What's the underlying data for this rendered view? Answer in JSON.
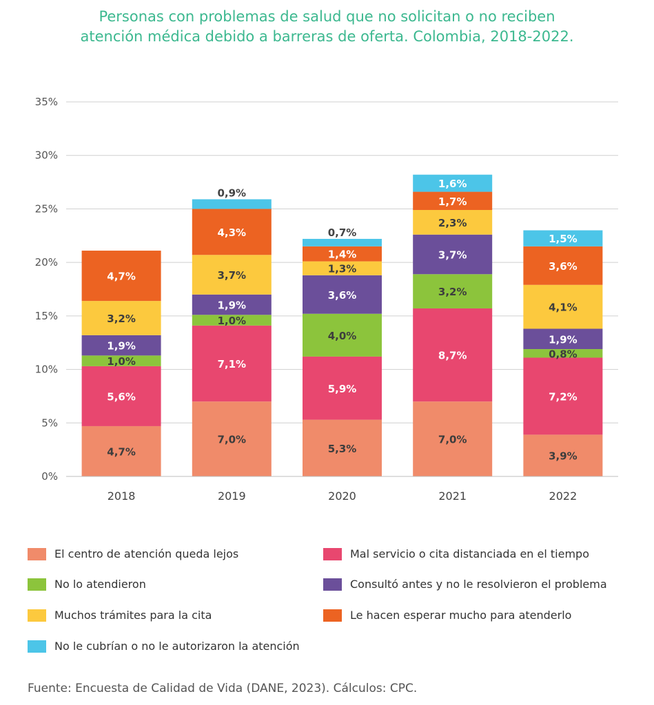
{
  "title_lines": [
    "Personas con problemas de salud que no solicitan o no reciben",
    "atención médica debido a barreras de oferta. Colombia, 2018-2022."
  ],
  "source": "Fuente: Encuesta de Calidad de Vida (DANE, 2023). Cálculos: CPC.",
  "chart_data": {
    "type": "bar",
    "stacked": true,
    "categories": [
      "2018",
      "2019",
      "2020",
      "2021",
      "2022"
    ],
    "ylim": [
      0,
      35
    ],
    "yticks": [
      0,
      5,
      10,
      15,
      20,
      25,
      30,
      35
    ],
    "ytick_labels": [
      "0%",
      "5%",
      "10%",
      "15%",
      "20%",
      "25%",
      "30%",
      "35%"
    ],
    "grid": true,
    "legend_position": "bottom",
    "series": [
      {
        "name": "El centro de atención queda lejos",
        "color": "#f08b6a",
        "values": [
          4.7,
          7.0,
          5.3,
          7.0,
          3.9
        ],
        "labels": [
          "4,7%",
          "7,0%",
          "5,3%",
          "7,0%",
          "3,9%"
        ]
      },
      {
        "name": "Mal servicio o cita distanciada en el tiempo",
        "color": "#e8476f",
        "values": [
          5.6,
          7.1,
          5.9,
          8.7,
          7.2
        ],
        "labels": [
          "5,6%",
          "7,1%",
          "5,9%",
          "8,7%",
          "7,2%"
        ]
      },
      {
        "name": "No lo atendieron",
        "color": "#8cc43c",
        "values": [
          1.0,
          1.0,
          4.0,
          3.2,
          0.8
        ],
        "labels": [
          "1,0%",
          "1,0%",
          "4,0%",
          "3,2%",
          "0,8%"
        ]
      },
      {
        "name": "Consultó antes y no le resolvieron el problema",
        "color": "#6b4f9a",
        "values": [
          1.9,
          1.9,
          3.6,
          3.7,
          1.9
        ],
        "labels": [
          "1,9%",
          "1,9%",
          "3,6%",
          "3,7%",
          "1,9%"
        ]
      },
      {
        "name": "Muchos trámites para la cita",
        "color": "#fcc93e",
        "values": [
          3.2,
          3.7,
          1.3,
          2.3,
          4.1
        ],
        "labels": [
          "3,2%",
          "3,7%",
          "1,3%",
          "2,3%",
          "4,1%"
        ]
      },
      {
        "name": "Le hacen esperar mucho para atenderlo",
        "color": "#ec6322",
        "values": [
          4.7,
          4.3,
          1.4,
          1.7,
          3.6
        ],
        "labels": [
          "4,7%",
          "4,3%",
          "1,4%",
          "1,7%",
          "3,6%"
        ]
      },
      {
        "name": "No le cubrían o no le autorizaron la atención",
        "color": "#4cc5e8",
        "values": [
          null,
          0.9,
          0.7,
          1.6,
          1.5
        ],
        "labels": [
          null,
          "0,9%",
          "0,7%",
          "1,6%",
          "1,5%"
        ]
      }
    ]
  }
}
